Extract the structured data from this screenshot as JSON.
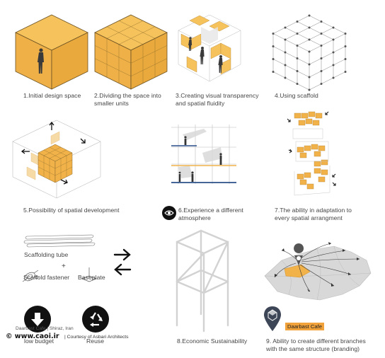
{
  "captions": {
    "c1": "1.Initial design space",
    "c2a": "2.Dividing  the space into",
    "c2b": "smaller units",
    "c3a": "3.Creating visual transparency",
    "c3b": "and spatial fluidity",
    "c4": "4.Using scaffold",
    "c5": "5.Possibility of spatial development",
    "c6a": "6.Experience a different",
    "c6b": "atmosphere",
    "c7a": "7.The ability in adaptation to",
    "c7b": "every spatial arrangment",
    "c8": "8.Economic Sustainability",
    "c9a": "9. Ability to create different branches",
    "c9b": "with the same structure (branding)"
  },
  "labels": {
    "scaffolding_tube": "Scaffolding tube",
    "plus": "+",
    "scaffold_fastener": "Scaffold fastener",
    "baseplate": "Baseplate",
    "low_budget": "low budget",
    "reuse": "Reuse",
    "brand_tag": "Daarbast Cafe"
  },
  "credits": {
    "project": "Daarbast Cafe | Shiraz, Iran",
    "watermark": "© www.caoi.ir",
    "courtesy": "| Courtesy of Asbari Architects"
  },
  "colors": {
    "accent_orange": "#f2b24a",
    "dark_orange": "#d99425",
    "line_gray": "#9a9a9a",
    "scaffold_blue": "#2b4f8a",
    "black": "#111111"
  },
  "icons": [
    "eye-icon",
    "down-arrow-icon",
    "recycle-icon",
    "map-pin-icon",
    "swap-arrows-icon"
  ]
}
